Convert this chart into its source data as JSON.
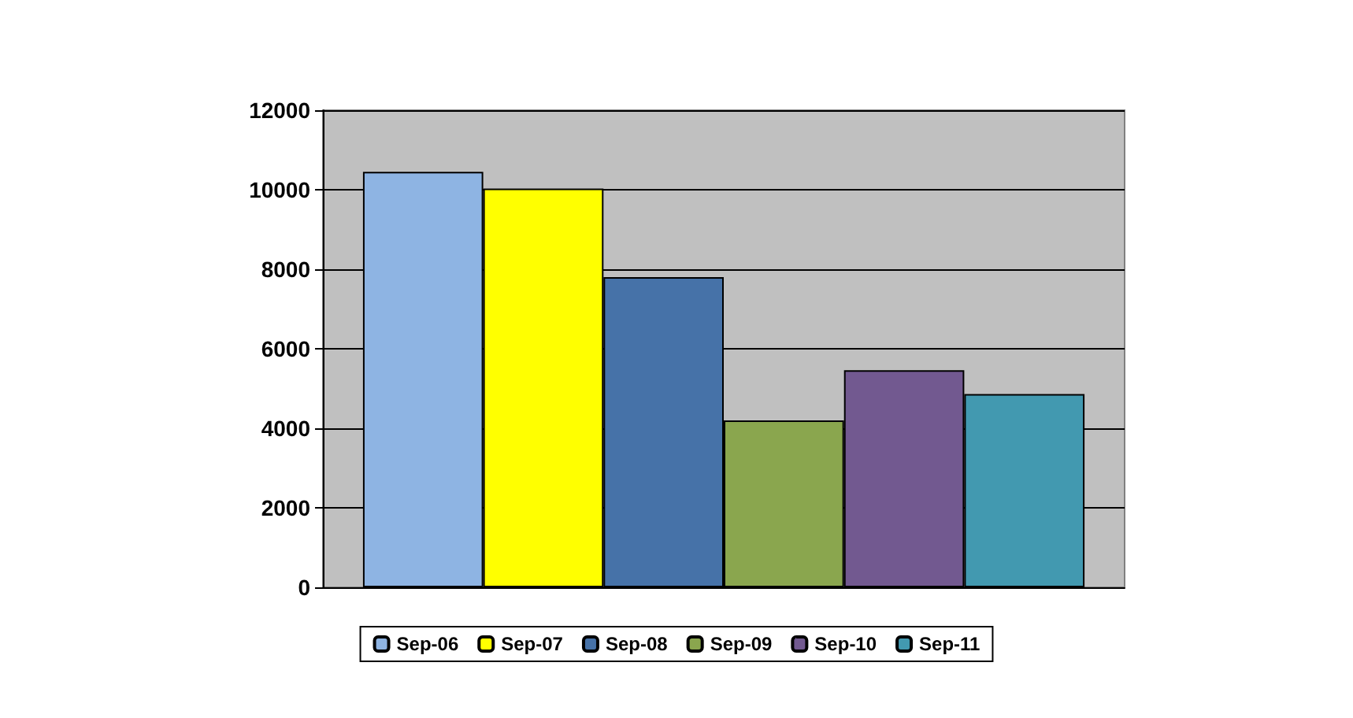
{
  "chart_data": {
    "type": "bar",
    "categories": [
      null
    ],
    "series": [
      {
        "name": "Sep-06",
        "color": "#8eb4e3",
        "values": [
          10450
        ]
      },
      {
        "name": "Sep-07",
        "color": "#ffff00",
        "values": [
          10030
        ]
      },
      {
        "name": "Sep-08",
        "color": "#4672a8",
        "values": [
          7800
        ]
      },
      {
        "name": "Sep-09",
        "color": "#8aa64e",
        "values": [
          4200
        ]
      },
      {
        "name": "Sep-10",
        "color": "#725990",
        "values": [
          5460
        ]
      },
      {
        "name": "Sep-11",
        "color": "#4299b0",
        "values": [
          4860
        ]
      }
    ],
    "ylim": [
      0,
      12000
    ],
    "yticks": [
      0,
      2000,
      4000,
      6000,
      8000,
      10000,
      12000
    ],
    "grid": "y",
    "legend": "bottom"
  }
}
